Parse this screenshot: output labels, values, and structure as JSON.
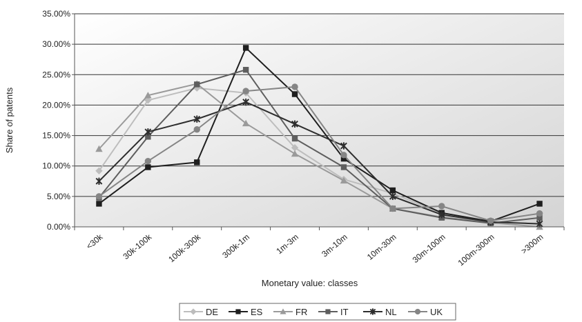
{
  "chart_data": {
    "type": "line",
    "title": "",
    "xlabel": "Monetary value: classes",
    "ylabel": "Share of patents",
    "ylim": [
      0,
      0.35
    ],
    "yticks": [
      "0.00%",
      "5.00%",
      "10.00%",
      "15.00%",
      "20.00%",
      "25.00%",
      "30.00%",
      "35.00%"
    ],
    "grid": true,
    "legend_position": "bottom",
    "categories": [
      "<30k",
      "30k-100k",
      "100k-300k",
      "300k-1m",
      "1m-3m",
      "3m-10m",
      "10m-30m",
      "30m-100m",
      "100m-300m",
      ">300m"
    ],
    "series": [
      {
        "name": "DE",
        "color": "#bdbdbd",
        "marker": "diamond",
        "values": [
          0.092,
          0.208,
          0.228,
          0.22,
          0.13,
          0.078,
          0.055,
          0.022,
          0.008,
          0.005
        ]
      },
      {
        "name": "ES",
        "color": "#1f1f1f",
        "marker": "square",
        "values": [
          0.038,
          0.098,
          0.106,
          0.294,
          0.218,
          0.112,
          0.06,
          0.023,
          0.009,
          0.038
        ]
      },
      {
        "name": "FR",
        "color": "#9a9a9a",
        "marker": "triangle",
        "values": [
          0.128,
          0.216,
          0.235,
          0.17,
          0.12,
          0.076,
          0.03,
          0.016,
          0.007,
          0.0
        ]
      },
      {
        "name": "IT",
        "color": "#5e5e5e",
        "marker": "square",
        "values": [
          0.048,
          0.148,
          0.234,
          0.258,
          0.145,
          0.098,
          0.03,
          0.015,
          0.006,
          0.015
        ]
      },
      {
        "name": "NL",
        "color": "#2e2e2e",
        "marker": "star",
        "values": [
          0.075,
          0.156,
          0.177,
          0.205,
          0.169,
          0.133,
          0.05,
          0.02,
          0.008,
          0.005
        ]
      },
      {
        "name": "UK",
        "color": "#858585",
        "marker": "circle",
        "values": [
          0.05,
          0.108,
          0.16,
          0.223,
          0.23,
          0.118,
          0.03,
          0.034,
          0.01,
          0.022
        ]
      }
    ]
  }
}
